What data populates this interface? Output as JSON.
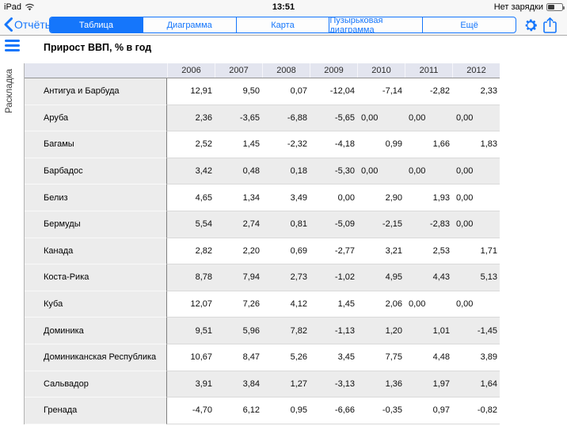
{
  "status_bar": {
    "device": "iPad",
    "time": "13:51",
    "battery_status": "Нет зарядки"
  },
  "toolbar": {
    "back_label": "Отчёты",
    "segments": [
      {
        "name": "tab-table",
        "label": "Таблица",
        "selected": true
      },
      {
        "name": "tab-chart",
        "label": "Диаграмма",
        "selected": false
      },
      {
        "name": "tab-map",
        "label": "Карта",
        "selected": false
      },
      {
        "name": "tab-bubble-chart",
        "label": "Пузырьковая диаграмма",
        "selected": false
      },
      {
        "name": "tab-more",
        "label": "Ещё",
        "selected": false
      }
    ],
    "icons": {
      "settings": "gear-icon",
      "share": "share-icon"
    }
  },
  "sidebar": {
    "menu_icon": "hamburger-icon",
    "layout_label": "Раскладка"
  },
  "page": {
    "title": "Прирост ВВП, % в год"
  },
  "colors": {
    "accent_blue": "#1576fb",
    "header_band": "#e3e5ef",
    "row_alt": "#ececec"
  },
  "table": {
    "type": "table",
    "columns": [
      "2006",
      "2007",
      "2008",
      "2009",
      "2010",
      "2011",
      "2012"
    ],
    "rows": [
      {
        "name": "Антигуа и Барбуда",
        "cells": [
          "12,91",
          "9,50",
          "0,07",
          "-12,04",
          "-7,14",
          "-2,82",
          "2,33"
        ]
      },
      {
        "name": "Аруба",
        "cells": [
          "2,36",
          "-3,65",
          "-6,88",
          "-5,65",
          {
            "v": "0,00",
            "align": "left"
          },
          {
            "v": "0,00",
            "align": "left"
          },
          {
            "v": "0,00",
            "align": "left"
          }
        ]
      },
      {
        "name": "Багамы",
        "cells": [
          "2,52",
          "1,45",
          "-2,32",
          "-4,18",
          "0,99",
          "1,66",
          "1,83"
        ]
      },
      {
        "name": "Барбадос",
        "cells": [
          "3,42",
          "0,48",
          "0,18",
          "-5,30",
          {
            "v": "0,00",
            "align": "left"
          },
          {
            "v": "0,00",
            "align": "left"
          },
          {
            "v": "0,00",
            "align": "left"
          }
        ]
      },
      {
        "name": "Белиз",
        "cells": [
          "4,65",
          "1,34",
          "3,49",
          "0,00",
          "2,90",
          "1,93",
          {
            "v": "0,00",
            "align": "left"
          }
        ]
      },
      {
        "name": "Бермуды",
        "cells": [
          "5,54",
          "2,74",
          "0,81",
          "-5,09",
          "-2,15",
          "-2,83",
          {
            "v": "0,00",
            "align": "left"
          }
        ]
      },
      {
        "name": "Канада",
        "cells": [
          "2,82",
          "2,20",
          "0,69",
          "-2,77",
          "3,21",
          "2,53",
          "1,71"
        ]
      },
      {
        "name": "Коста-Рика",
        "cells": [
          "8,78",
          "7,94",
          "2,73",
          "-1,02",
          "4,95",
          "4,43",
          "5,13"
        ]
      },
      {
        "name": "Куба",
        "cells": [
          "12,07",
          "7,26",
          "4,12",
          "1,45",
          "2,06",
          {
            "v": "0,00",
            "align": "left"
          },
          {
            "v": "0,00",
            "align": "left"
          }
        ]
      },
      {
        "name": "Доминика",
        "cells": [
          "9,51",
          "5,96",
          "7,82",
          "-1,13",
          "1,20",
          "1,01",
          "-1,45"
        ]
      },
      {
        "name": "Доминиканская Республика",
        "cells": [
          "10,67",
          "8,47",
          "5,26",
          "3,45",
          "7,75",
          "4,48",
          "3,89"
        ]
      },
      {
        "name": "Сальвадор",
        "cells": [
          "3,91",
          "3,84",
          "1,27",
          "-3,13",
          "1,36",
          "1,97",
          "1,64"
        ]
      },
      {
        "name": "Гренада",
        "cells": [
          "-4,70",
          "6,12",
          "0,95",
          "-6,66",
          "-0,35",
          "0,97",
          "-0,82"
        ]
      }
    ]
  }
}
